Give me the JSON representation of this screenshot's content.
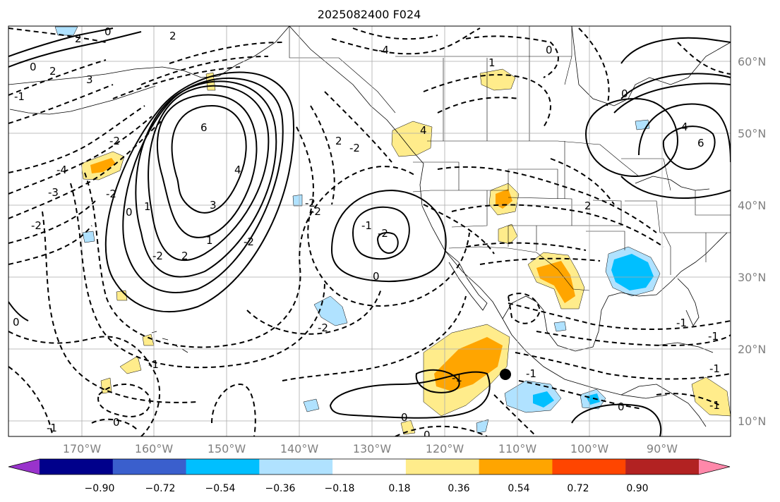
{
  "title": "2025082400 F024",
  "map": {
    "lat_labels": [
      "60°N",
      "50°N",
      "40°N",
      "30°N",
      "20°N",
      "10°N"
    ],
    "lon_labels": [
      "170°W",
      "160°W",
      "150°W",
      "140°W",
      "130°W",
      "120°W",
      "110°W",
      "100°W",
      "90°W"
    ],
    "contour_labels": [
      "0",
      "2",
      "2",
      "0",
      "2",
      "3",
      "-1",
      "-2",
      "-2",
      "-4",
      "-3",
      "-2",
      "6",
      "4",
      "3",
      "2",
      "1",
      "0",
      "-2",
      "-2",
      "1",
      "-2",
      "0",
      "-2",
      "-1",
      "-1",
      "0",
      "-4",
      "2",
      "-2",
      "4",
      "-2",
      "-2",
      "-1",
      "0",
      "-1",
      "0",
      "0",
      "0",
      "-1",
      "2",
      "-1",
      "-1",
      "-1",
      "-1",
      "0",
      "1",
      "0",
      "4",
      "6"
    ],
    "marker": "filled-dot"
  },
  "colorbar": {
    "tick_labels": [
      "−0.90",
      "−0.72",
      "−0.54",
      "−0.36",
      "−0.18",
      "0.18",
      "0.36",
      "0.54",
      "0.72",
      "0.90"
    ],
    "colors": [
      "#9933cc",
      "#00008b",
      "#3a5fcd",
      "#00bfff",
      "#b0e2ff",
      "#ffffff",
      "#ffec8b",
      "#ffa500",
      "#ff4500",
      "#b22222",
      "#ff88aa"
    ]
  },
  "shading_colors": {
    "light_yellow": "#ffec8b",
    "orange": "#ffa500",
    "light_blue": "#b0e2ff",
    "deep_sky_blue": "#00bfff"
  }
}
